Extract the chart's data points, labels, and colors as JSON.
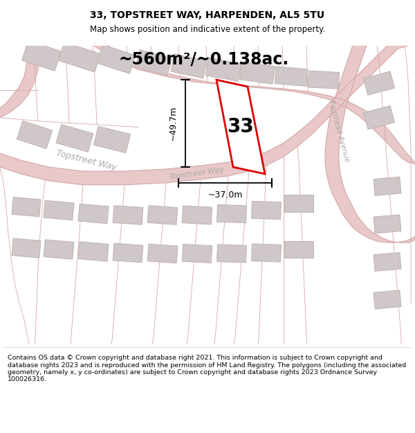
{
  "title_line1": "33, TOPSTREET WAY, HARPENDEN, AL5 5TU",
  "title_line2": "Map shows position and indicative extent of the property.",
  "area_label": "~560m²/~0.138ac.",
  "height_label": "~49.7m",
  "width_label": "~37.0m",
  "property_number": "33",
  "street_label1": "Topstreet Way",
  "street_label2": "Topstreet Way",
  "road_label_fairmead": "Fairmead Avenue",
  "footer_text": "Contains OS data © Crown copyright and database right 2021. This information is subject to Crown copyright and database rights 2023 and is reproduced with the permission of HM Land Registry. The polygons (including the associated geometry, namely x, y co-ordinates) are subject to Crown copyright and database rights 2023 Ordnance Survey 100026316.",
  "map_bg_color": "#f7f0f0",
  "road_fill_color": "#e8c8c8",
  "road_line_color": "#d4a8a8",
  "building_fill_color": "#d0c8c8",
  "building_edge_color": "#c0b0b0",
  "property_outline_color": "#dd0000",
  "property_fill_color": "#ffffff",
  "dim_line_color": "#000000",
  "text_color": "#000000",
  "road_text_color": "#aaaaaa",
  "figsize": [
    6.0,
    6.25
  ],
  "dpi": 100,
  "title_fontsize": 10,
  "subtitle_fontsize": 8.5,
  "area_fontsize": 17,
  "number_fontsize": 20,
  "dim_fontsize": 9,
  "street_fontsize": 9,
  "footer_fontsize": 6.8
}
